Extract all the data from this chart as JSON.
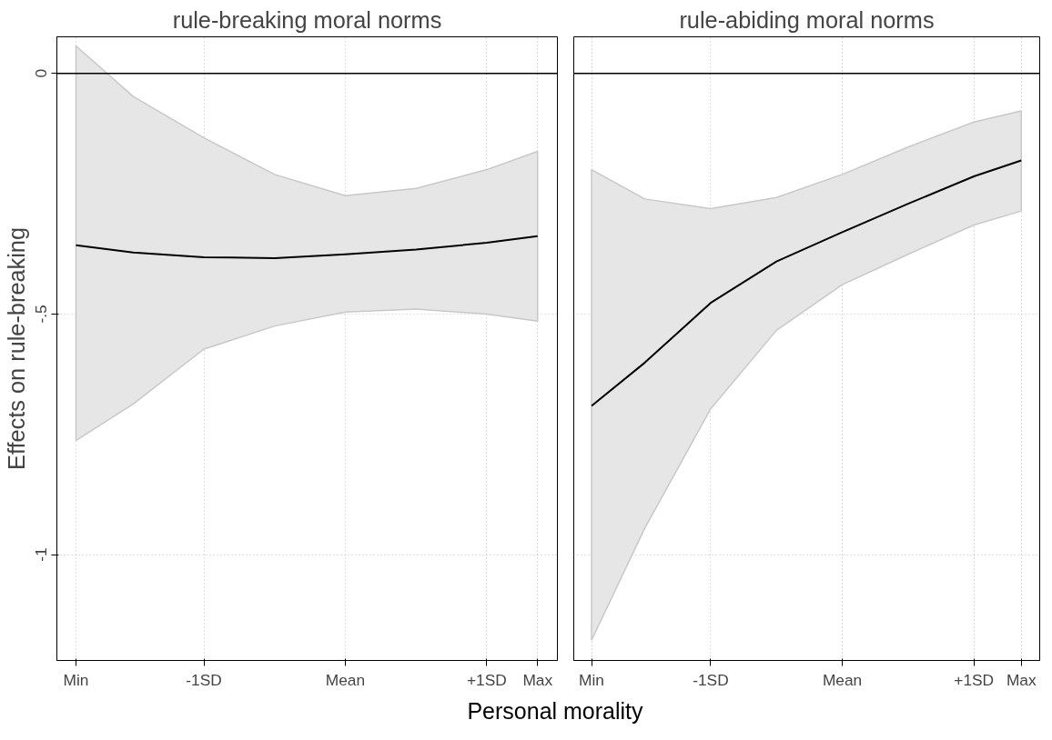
{
  "chart_data": [
    {
      "type": "line",
      "title": "rule-breaking moral norms",
      "ylabel": "Effects on rule-breaking",
      "xlabel": "Personal morality",
      "xlim": [
        -2.04,
        1.5
      ],
      "ylim": [
        -1.22,
        0.076
      ],
      "xticks": [
        {
          "value": -1.905,
          "label": "Min"
        },
        {
          "value": -1,
          "label": "-1SD"
        },
        {
          "value": 0,
          "label": "Mean"
        },
        {
          "value": 1,
          "label": "+1SD"
        },
        {
          "value": 1.36,
          "label": "Max"
        }
      ],
      "yticks": [
        {
          "value": -1,
          "label": "-1"
        },
        {
          "value": -0.5,
          "label": "-.5"
        },
        {
          "value": 0,
          "label": "0"
        }
      ],
      "grid": true,
      "line_style": "solid",
      "ref_lines": [
        {
          "axis": "y",
          "value": 0,
          "color": "#000000"
        }
      ],
      "series": [
        {
          "color": "#000000",
          "x": [
            -1.905,
            -1.5,
            -1,
            -0.5,
            0,
            0.5,
            1,
            1.36
          ],
          "values": [
            -0.357,
            -0.372,
            -0.382,
            -0.384,
            -0.376,
            -0.366,
            -0.352,
            -0.338
          ],
          "lower": [
            -0.763,
            -0.687,
            -0.573,
            -0.525,
            -0.496,
            -0.49,
            -0.5,
            -0.515
          ],
          "upper": [
            0.057,
            -0.048,
            -0.134,
            -0.21,
            -0.254,
            -0.239,
            -0.2,
            -0.162
          ]
        }
      ]
    },
    {
      "type": "line",
      "title": "rule-abiding moral norms",
      "xlim": [
        -2.04,
        1.5
      ],
      "ylim": [
        -1.22,
        0.076
      ],
      "xticks": [
        {
          "value": -1.905,
          "label": "Min"
        },
        {
          "value": -1,
          "label": "-1SD"
        },
        {
          "value": 0,
          "label": "Mean"
        },
        {
          "value": 1,
          "label": "+1SD"
        },
        {
          "value": 1.36,
          "label": "Max"
        }
      ],
      "yticks": [
        {
          "value": -1,
          "label": null
        },
        {
          "value": -0.5,
          "label": null
        },
        {
          "value": 0,
          "label": null
        }
      ],
      "tick_labels": "x",
      "grid": true,
      "line_style": "solid",
      "ref_lines": [
        {
          "axis": "y",
          "value": 0,
          "color": "#000000"
        }
      ],
      "series": [
        {
          "color": "#000000",
          "x": [
            -1.905,
            -1.5,
            -1,
            -0.5,
            0,
            0.5,
            1,
            1.36
          ],
          "values": [
            -0.691,
            -0.601,
            -0.477,
            -0.391,
            -0.33,
            -0.271,
            -0.214,
            -0.181
          ],
          "lower": [
            -1.178,
            -0.945,
            -0.697,
            -0.534,
            -0.439,
            -0.376,
            -0.315,
            -0.286
          ],
          "upper": [
            -0.2,
            -0.261,
            -0.281,
            -0.258,
            -0.21,
            -0.153,
            -0.101,
            -0.078
          ]
        }
      ]
    }
  ]
}
